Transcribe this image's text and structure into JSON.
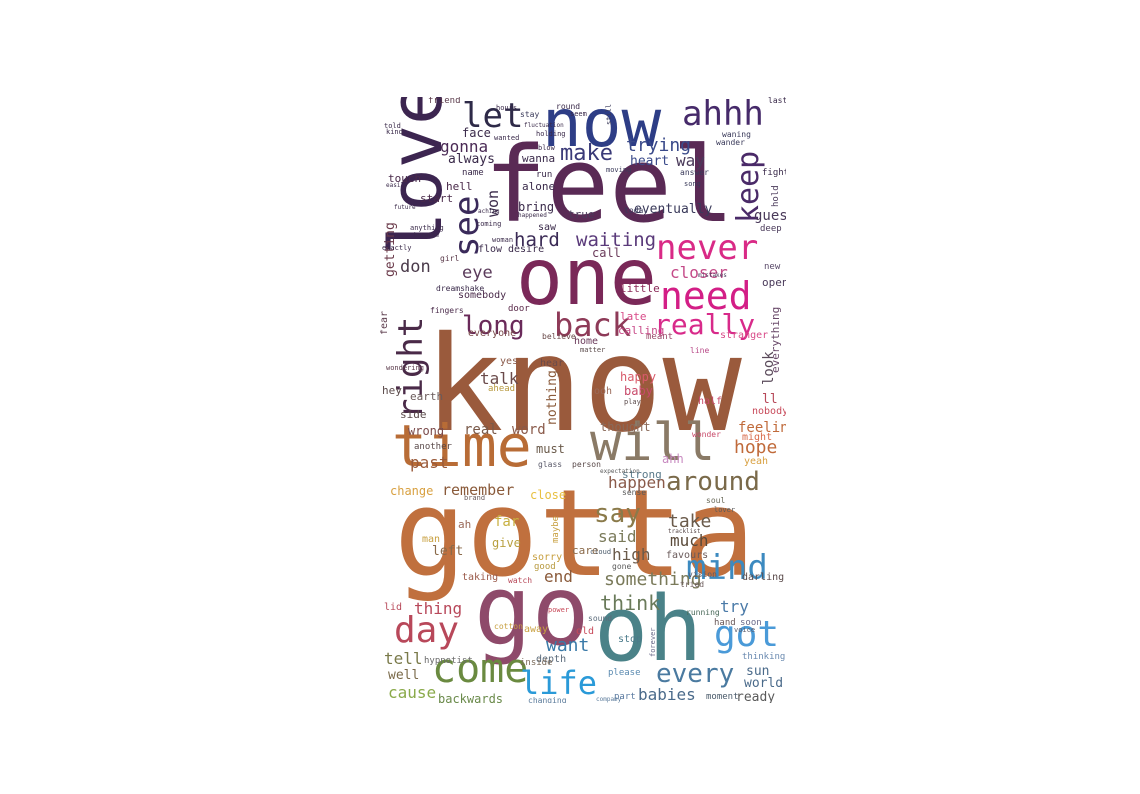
{
  "wordcloud": {
    "words": [
      {
        "text": "know",
        "color": "#9a5a3c"
      },
      {
        "text": "gotta",
        "color": "#c0703e"
      },
      {
        "text": "feel",
        "color": "#5a2a55"
      },
      {
        "text": "love",
        "color": "#3c2550"
      },
      {
        "text": "now",
        "color": "#2d3d86"
      },
      {
        "text": "one",
        "color": "#7a2858"
      },
      {
        "text": "go",
        "color": "#8e4a6a"
      },
      {
        "text": "oh",
        "color": "#4a8288"
      },
      {
        "text": "time",
        "color": "#b86c36"
      },
      {
        "text": "will",
        "color": "#8a7a66"
      },
      {
        "text": "ahhh",
        "color": "#462a6a"
      },
      {
        "text": "let",
        "color": "#2e2a48"
      },
      {
        "text": "never",
        "color": "#d92a86"
      },
      {
        "text": "need",
        "color": "#d31e86"
      },
      {
        "text": "back",
        "color": "#8e3a58"
      },
      {
        "text": "really",
        "color": "#d82a8a"
      },
      {
        "text": "long",
        "color": "#6a2a5a"
      },
      {
        "text": "see",
        "color": "#3a2a5a"
      },
      {
        "text": "keep",
        "color": "#4a2a68"
      },
      {
        "text": "right",
        "color": "#4a2a48"
      },
      {
        "text": "make",
        "color": "#3a3a78"
      },
      {
        "text": "trying",
        "color": "#3a4a8a"
      },
      {
        "text": "gonna",
        "color": "#4a2a55"
      },
      {
        "text": "heart",
        "color": "#3a4a8a"
      },
      {
        "text": "hard",
        "color": "#3a2a55"
      },
      {
        "text": "waiting",
        "color": "#5a3a7a"
      },
      {
        "text": "closer",
        "color": "#c44a88"
      },
      {
        "text": "mind",
        "color": "#3c8ac0"
      },
      {
        "text": "got",
        "color": "#4a9ad8"
      },
      {
        "text": "say",
        "color": "#8a7a4a"
      },
      {
        "text": "around",
        "color": "#7a6a4a"
      },
      {
        "text": "day",
        "color": "#b8485a"
      },
      {
        "text": "come",
        "color": "#6a8a40"
      },
      {
        "text": "life",
        "color": "#2a9ad8"
      },
      {
        "text": "every",
        "color": "#4a7aa0"
      },
      {
        "text": "babies",
        "color": "#4a6a8a"
      },
      {
        "text": "want",
        "color": "#3a7aa8"
      },
      {
        "text": "think",
        "color": "#6a7a5a"
      },
      {
        "text": "something",
        "color": "#7a7a5a"
      },
      {
        "text": "take",
        "color": "#6a5a4a"
      },
      {
        "text": "much",
        "color": "#5a4a3a"
      },
      {
        "text": "said",
        "color": "#7a7a5a"
      },
      {
        "text": "high",
        "color": "#6a5a4a"
      },
      {
        "text": "remember",
        "color": "#8a5a3a"
      },
      {
        "text": "past",
        "color": "#9a5a3a"
      },
      {
        "text": "happen",
        "color": "#8a5a4a"
      },
      {
        "text": "hope",
        "color": "#c06a3a"
      },
      {
        "text": "feeling",
        "color": "#c06a3a"
      },
      {
        "text": "talk",
        "color": "#6a4a4a"
      },
      {
        "text": "real",
        "color": "#7a5a4a"
      },
      {
        "text": "word",
        "color": "#8a5a4a"
      },
      {
        "text": "eye",
        "color": "#5a3a5a"
      },
      {
        "text": "don",
        "color": "#4a3a4a"
      },
      {
        "text": "cause",
        "color": "#8aaa4a"
      },
      {
        "text": "backwards",
        "color": "#6a8a4a"
      },
      {
        "text": "tell",
        "color": "#7a7a4a"
      },
      {
        "text": "well",
        "color": "#7a6a4a"
      },
      {
        "text": "end",
        "color": "#8a5a3a"
      },
      {
        "text": "thing",
        "color": "#b8485a"
      },
      {
        "text": "left",
        "color": "#8a6a4a"
      },
      {
        "text": "sun",
        "color": "#4a6a8a"
      },
      {
        "text": "world",
        "color": "#4a6a8a"
      },
      {
        "text": "ready",
        "color": "#5a5a5a"
      },
      {
        "text": "try",
        "color": "#4a7aa8"
      },
      {
        "text": "look",
        "color": "#5a4a5a"
      },
      {
        "text": "everything",
        "color": "#6a4a6a"
      },
      {
        "text": "guess",
        "color": "#4a3a5a"
      },
      {
        "text": "eventually",
        "color": "#3a3a5a"
      },
      {
        "text": "way",
        "color": "#4a3a5a"
      },
      {
        "text": "always",
        "color": "#3a2a4a"
      },
      {
        "text": "won",
        "color": "#3a2a4a"
      },
      {
        "text": "getting",
        "color": "#6a3a4a"
      },
      {
        "text": "bring",
        "color": "#3a2a4a"
      },
      {
        "text": "far",
        "color": "#c8b040"
      },
      {
        "text": "give",
        "color": "#b8a040"
      },
      {
        "text": "nothing",
        "color": "#8a5a3a"
      },
      {
        "text": "happy",
        "color": "#d85a6a"
      },
      {
        "text": "baby",
        "color": "#c84a6a"
      },
      {
        "text": "thought",
        "color": "#8a6a5a"
      },
      {
        "text": "late",
        "color": "#d84a88"
      },
      {
        "text": "calling",
        "color": "#c84a88"
      },
      {
        "text": "little",
        "color": "#8a2a58"
      },
      {
        "text": "close",
        "color": "#e8c040"
      },
      {
        "text": "must",
        "color": "#6a5a4a"
      },
      {
        "text": "wrong",
        "color": "#7a4a4a"
      },
      {
        "text": "earth",
        "color": "#6a5a5a"
      },
      {
        "text": "side",
        "color": "#5a4a4a"
      },
      {
        "text": "hey",
        "color": "#5a4a4a"
      },
      {
        "text": "fear",
        "color": "#5a3a4a"
      },
      {
        "text": "face",
        "color": "#3a2a4a"
      },
      {
        "text": "wanna",
        "color": "#3a2a4a"
      },
      {
        "text": "alone",
        "color": "#3a2a4a"
      },
      {
        "text": "hell",
        "color": "#4a2a4a"
      },
      {
        "text": "start",
        "color": "#4a2a4a"
      },
      {
        "text": "touch",
        "color": "#4a2a4a"
      },
      {
        "text": "true",
        "color": "#4a3a5a"
      },
      {
        "text": "call",
        "color": "#6a3a5a"
      },
      {
        "text": "desire",
        "color": "#3a2a4a"
      },
      {
        "text": "flow",
        "color": "#3a2a4a"
      },
      {
        "text": "door",
        "color": "#5a2a4a"
      },
      {
        "text": "somebody",
        "color": "#4a2a4a"
      },
      {
        "text": "yes",
        "color": "#8a5a4a"
      },
      {
        "text": "everyone",
        "color": "#7a4a4a"
      },
      {
        "text": "open",
        "color": "#4a3a5a"
      },
      {
        "text": "stranger",
        "color": "#d84a88"
      },
      {
        "text": "ll",
        "color": "#b84a5a"
      },
      {
        "text": "nobody",
        "color": "#c84a5a"
      },
      {
        "text": "might",
        "color": "#d86a4a"
      },
      {
        "text": "yeah",
        "color": "#d8a040"
      },
      {
        "text": "ahh",
        "color": "#c88ac0"
      },
      {
        "text": "strong",
        "color": "#5a7a8a"
      },
      {
        "text": "home",
        "color": "#6a3a5a"
      },
      {
        "text": "ooh",
        "color": "#9a6a5a"
      },
      {
        "text": "care",
        "color": "#8a6a4a"
      },
      {
        "text": "sorry",
        "color": "#c8a040"
      },
      {
        "text": "good",
        "color": "#b89a40"
      },
      {
        "text": "man",
        "color": "#c8a040"
      },
      {
        "text": "taking",
        "color": "#9a5a4a"
      },
      {
        "text": "lid",
        "color": "#b84a5a"
      },
      {
        "text": "depth",
        "color": "#5a6a7a"
      },
      {
        "text": "stop",
        "color": "#4a7a8a"
      },
      {
        "text": "please",
        "color": "#5a8ab0"
      },
      {
        "text": "part",
        "color": "#5a7aa0"
      },
      {
        "text": "moment",
        "color": "#4a5a6a"
      },
      {
        "text": "darling",
        "color": "#5a4a4a"
      },
      {
        "text": "favours",
        "color": "#6a5a5a"
      },
      {
        "text": "hand",
        "color": "#6a5a5a"
      },
      {
        "text": "soon",
        "color": "#6a6a8a"
      },
      {
        "text": "thinking",
        "color": "#6a8ab0"
      },
      {
        "text": "another",
        "color": "#5a4a4a"
      },
      {
        "text": "change",
        "color": "#d8a040"
      },
      {
        "text": "ah",
        "color": "#9a6a5a"
      },
      {
        "text": "hypnotist",
        "color": "#6a6a6a"
      },
      {
        "text": "old",
        "color": "#c84a5a"
      },
      {
        "text": "away",
        "color": "#c8a040"
      },
      {
        "text": "inside",
        "color": "#7a6a5a"
      },
      {
        "text": "changing",
        "color": "#5a7a9a"
      },
      {
        "text": "dreamshake",
        "color": "#3a2a4a"
      },
      {
        "text": "girl",
        "color": "#5a3a4a"
      },
      {
        "text": "friend",
        "color": "#5a3a4a"
      },
      {
        "text": "run",
        "color": "#3a2a4a"
      },
      {
        "text": "name",
        "color": "#3a2a4a"
      },
      {
        "text": "fingers",
        "color": "#4a2a4a"
      },
      {
        "text": "glass",
        "color": "#5a5a6a"
      },
      {
        "text": "half",
        "color": "#c84a6a"
      },
      {
        "text": "line",
        "color": "#b84a88"
      },
      {
        "text": "meant",
        "color": "#9a4a6a"
      },
      {
        "text": "hear",
        "color": "#6a4a4a"
      },
      {
        "text": "ahead",
        "color": "#b89a40"
      },
      {
        "text": "saw",
        "color": "#3a2a4a"
      },
      {
        "text": "today",
        "color": "#3a3a5a"
      },
      {
        "text": "hold",
        "color": "#4a3a5a"
      },
      {
        "text": "deep",
        "color": "#4a3a5a"
      },
      {
        "text": "new",
        "color": "#5a4a6a"
      },
      {
        "text": "fight",
        "color": "#3a2a4a"
      },
      {
        "text": "last",
        "color": "#3a2a4a"
      },
      {
        "text": "answer",
        "color": "#3a3a5a"
      },
      {
        "text": "song",
        "color": "#3a3a5a"
      },
      {
        "text": "wonder",
        "color": "#c84a6a"
      },
      {
        "text": "vision",
        "color": "#5a5a6a"
      },
      {
        "text": "tried",
        "color": "#6a5a5a"
      },
      {
        "text": "running",
        "color": "#4a6a5a"
      },
      {
        "text": "voice",
        "color": "#5a5a6a"
      },
      {
        "text": "forever",
        "color": "#6a6a8a"
      },
      {
        "text": "cotton",
        "color": "#c8a040"
      },
      {
        "text": "believe",
        "color": "#6a4a4a"
      },
      {
        "text": "person",
        "color": "#5a4a4a"
      },
      {
        "text": "matter",
        "color": "#5a4a4a"
      },
      {
        "text": "play",
        "color": "#5a4a4a"
      },
      {
        "text": "sense",
        "color": "#5a5a5a"
      },
      {
        "text": "brand",
        "color": "#6a5a5a"
      },
      {
        "text": "watch",
        "color": "#b84a5a"
      },
      {
        "text": "sound",
        "color": "#5a6a7a"
      },
      {
        "text": "power",
        "color": "#c84a5a"
      },
      {
        "text": "cloud",
        "color": "#4a5a6a"
      },
      {
        "text": "gone",
        "color": "#5a5a5a"
      },
      {
        "text": "lover",
        "color": "#5a5a5a"
      },
      {
        "text": "soul",
        "color": "#6a6a5a"
      },
      {
        "text": "maybe",
        "color": "#c8a040"
      },
      {
        "text": "holding",
        "color": "#3a2a4a"
      },
      {
        "text": "hours",
        "color": "#3a2a4a"
      },
      {
        "text": "told",
        "color": "#3a2a4a"
      },
      {
        "text": "kind",
        "color": "#3a2a4a"
      },
      {
        "text": "wanted",
        "color": "#3a2a4a"
      },
      {
        "text": "stay",
        "color": "#3a3a5a"
      },
      {
        "text": "round",
        "color": "#3a2a4a"
      },
      {
        "text": "seem",
        "color": "#3a2a4a"
      },
      {
        "text": "still",
        "color": "#3a3a5a"
      },
      {
        "text": "waning",
        "color": "#3a3a5a"
      },
      {
        "text": "wander",
        "color": "#3a3a5a"
      },
      {
        "text": "blow",
        "color": "#3a2a4a"
      },
      {
        "text": "moving",
        "color": "#3a3a5a"
      },
      {
        "text": "anything",
        "color": "#3a2a4a"
      },
      {
        "text": "coming",
        "color": "#3a2a4a"
      },
      {
        "text": "woman",
        "color": "#3a2a4a"
      },
      {
        "text": "exactly",
        "color": "#3a2a4a"
      },
      {
        "text": "breathe",
        "color": "#3a2a4a"
      },
      {
        "text": "happened",
        "color": "#3a2a4a"
      },
      {
        "text": "fluctuation",
        "color": "#3a2a4a"
      },
      {
        "text": "future",
        "color": "#3a2a4a"
      },
      {
        "text": "easily",
        "color": "#3a2a4a"
      },
      {
        "text": "aching",
        "color": "#3a2a4a"
      },
      {
        "text": "mistakes",
        "color": "#4a3a5a"
      },
      {
        "text": "wondering",
        "color": "#5a3a4a"
      },
      {
        "text": "tracklist",
        "color": "#5a4a4a"
      },
      {
        "text": "expectation",
        "color": "#5a5a5a"
      },
      {
        "text": "company",
        "color": "#5a7a9a"
      }
    ]
  }
}
